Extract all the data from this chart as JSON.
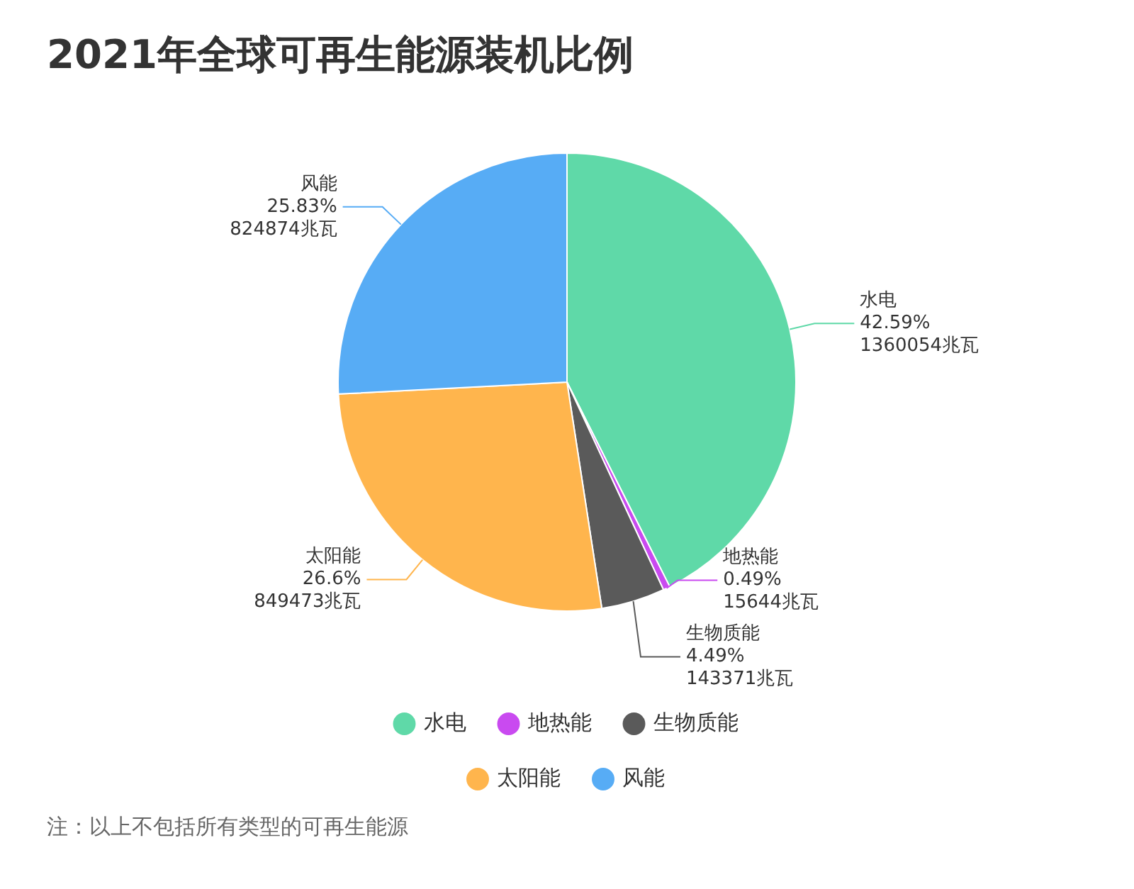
{
  "chart_data": {
    "type": "pie",
    "title": "2021年全球可再生能源装机比例",
    "categories": [
      "水电",
      "地热能",
      "生物质能",
      "太阳能",
      "风能"
    ],
    "values": [
      1360054,
      15644,
      143371,
      849473,
      824874
    ],
    "value_labels": [
      "42.59%\n1360054兆瓦",
      "0.49%\n15644兆瓦",
      "4.49%\n143371兆瓦",
      "26.6%\n849473兆瓦",
      "25.83%\n824874兆瓦"
    ],
    "colors": [
      "#5fd9a8",
      "#c94af0",
      "#5a5a5a",
      "#ffb54d",
      "#57acf5"
    ],
    "legend": "bottom",
    "annotations": [
      "注：以上不包括所有类型的可再生能源"
    ]
  }
}
